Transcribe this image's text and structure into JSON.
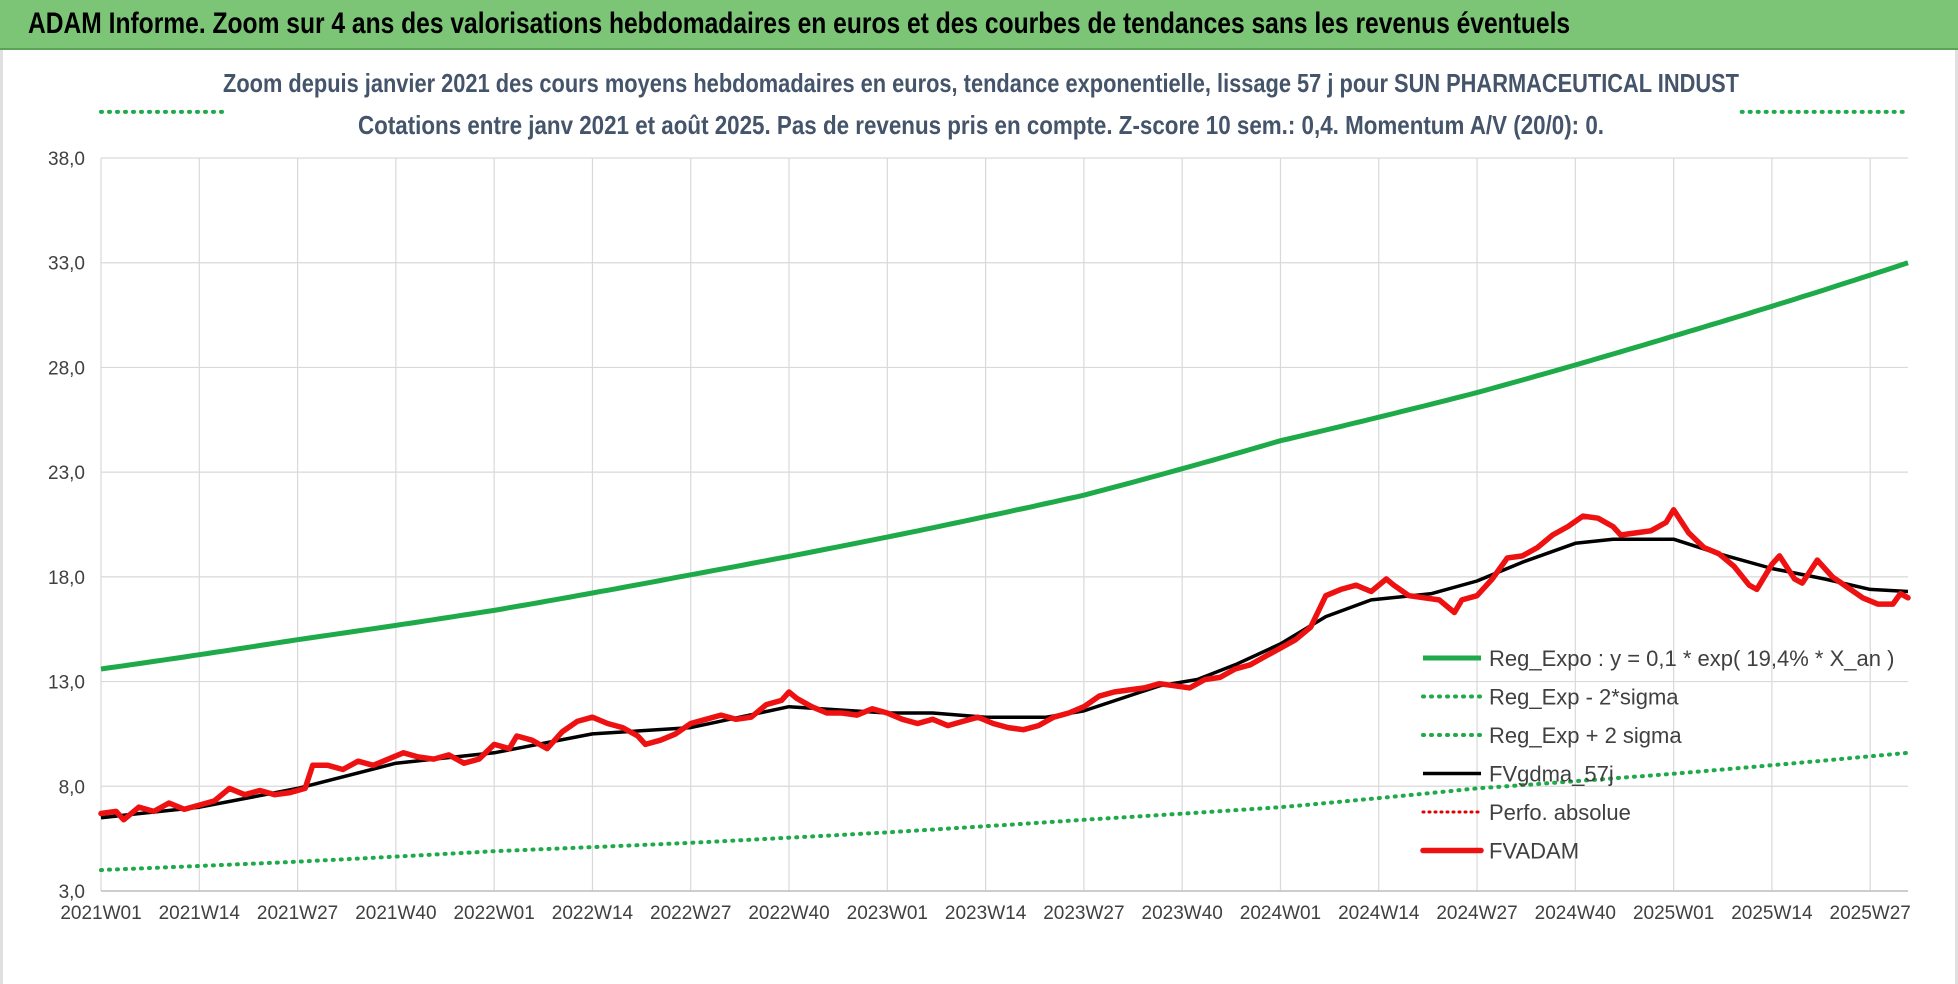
{
  "banner": {
    "title": "ADAM Informe. Zoom sur 4 ans des valorisations hebdomadaires en euros et des courbes de tendances sans les revenus éventuels"
  },
  "colors": {
    "banner_bg": "#7cc576",
    "reg_expo": "#1faa4a",
    "sigma": "#1faa4a",
    "fvgdma": "#000000",
    "perfo": "#e00000",
    "fvadam": "#ee1111",
    "grid": "#d9d9d9"
  },
  "chart_data": {
    "type": "line",
    "title_line1": "Zoom depuis janvier 2021 des cours moyens hebdomadaires en euros, tendance exponentielle, lissage 57 j pour SUN PHARMACEUTICAL INDUST",
    "title_line2": "Cotations entre janv 2021 et août 2025. Pas de revenus pris en compte. Z-score 10 sem.: 0,4. Momentum A/V (20/0): 0.",
    "ylim": [
      3.0,
      38.0
    ],
    "yticks": [
      "3,0",
      "8,0",
      "13,0",
      "18,0",
      "23,0",
      "28,0",
      "33,0",
      "38,0"
    ],
    "x_count": 240,
    "xticks": [
      {
        "i": 0,
        "label": "2021W01"
      },
      {
        "i": 13,
        "label": "2021W14"
      },
      {
        "i": 26,
        "label": "2021W27"
      },
      {
        "i": 39,
        "label": "2021W40"
      },
      {
        "i": 52,
        "label": "2022W01"
      },
      {
        "i": 65,
        "label": "2022W14"
      },
      {
        "i": 78,
        "label": "2022W27"
      },
      {
        "i": 91,
        "label": "2022W40"
      },
      {
        "i": 104,
        "label": "2023W01"
      },
      {
        "i": 117,
        "label": "2023W14"
      },
      {
        "i": 130,
        "label": "2023W27"
      },
      {
        "i": 143,
        "label": "2023W40"
      },
      {
        "i": 156,
        "label": "2024W01"
      },
      {
        "i": 169,
        "label": "2024W14"
      },
      {
        "i": 182,
        "label": "2024W27"
      },
      {
        "i": 195,
        "label": "2024W40"
      },
      {
        "i": 208,
        "label": "2025W01"
      },
      {
        "i": 221,
        "label": "2025W14"
      },
      {
        "i": 234,
        "label": "2025W27"
      }
    ],
    "grid": true,
    "legend_position": "right",
    "series": [
      {
        "key": "reg_expo",
        "name": "Reg_Expo : y = 0,1 * exp( 19,4% *  X_an )",
        "style": "solid-thick",
        "points": [
          [
            0,
            13.6
          ],
          [
            26,
            15.0
          ],
          [
            52,
            16.4
          ],
          [
            78,
            18.1
          ],
          [
            104,
            19.9
          ],
          [
            130,
            21.9
          ],
          [
            156,
            24.5
          ],
          [
            182,
            26.8
          ],
          [
            208,
            29.5
          ],
          [
            239,
            33.0
          ]
        ]
      },
      {
        "key": "minus2",
        "name": "Reg_Exp - 2*sigma",
        "style": "dotted",
        "points": [
          [
            0,
            4.0
          ],
          [
            26,
            4.4
          ],
          [
            52,
            4.9
          ],
          [
            78,
            5.3
          ],
          [
            104,
            5.8
          ],
          [
            130,
            6.4
          ],
          [
            156,
            7.0
          ],
          [
            182,
            7.9
          ],
          [
            208,
            8.6
          ],
          [
            239,
            9.6
          ]
        ]
      },
      {
        "key": "plus2",
        "name": "Reg_Exp + 2 sigma",
        "style": "dotted",
        "points": [
          [
            0,
            40.2
          ],
          [
            16,
            40.2
          ]
        ],
        "points2": [
          [
            217,
            40.2
          ],
          [
            239,
            40.2
          ]
        ]
      },
      {
        "key": "fvgdma",
        "name": "FVgdma_57j",
        "style": "solid",
        "points": [
          [
            0,
            6.5
          ],
          [
            13,
            7.0
          ],
          [
            26,
            7.9
          ],
          [
            39,
            9.1
          ],
          [
            52,
            9.6
          ],
          [
            65,
            10.5
          ],
          [
            78,
            10.8
          ],
          [
            91,
            11.8
          ],
          [
            104,
            11.5
          ],
          [
            110,
            11.5
          ],
          [
            117,
            11.3
          ],
          [
            125,
            11.3
          ],
          [
            130,
            11.6
          ],
          [
            140,
            12.8
          ],
          [
            145,
            13.1
          ],
          [
            150,
            13.8
          ],
          [
            156,
            14.8
          ],
          [
            162,
            16.1
          ],
          [
            168,
            16.9
          ],
          [
            176,
            17.2
          ],
          [
            182,
            17.8
          ],
          [
            188,
            18.7
          ],
          [
            195,
            19.6
          ],
          [
            200,
            19.8
          ],
          [
            208,
            19.8
          ],
          [
            214,
            19.1
          ],
          [
            221,
            18.4
          ],
          [
            228,
            17.9
          ],
          [
            234,
            17.4
          ],
          [
            239,
            17.3
          ]
        ]
      },
      {
        "key": "perfo",
        "name": "Perfo. absolue",
        "style": "dotted-red",
        "points": []
      },
      {
        "key": "fvadam",
        "name": "FVADAM",
        "style": "solid-red",
        "points": [
          [
            0,
            6.7
          ],
          [
            2,
            6.8
          ],
          [
            3,
            6.4
          ],
          [
            5,
            7.0
          ],
          [
            7,
            6.8
          ],
          [
            9,
            7.2
          ],
          [
            11,
            6.9
          ],
          [
            13,
            7.1
          ],
          [
            15,
            7.3
          ],
          [
            17,
            7.9
          ],
          [
            19,
            7.6
          ],
          [
            21,
            7.8
          ],
          [
            23,
            7.6
          ],
          [
            25,
            7.7
          ],
          [
            27,
            7.9
          ],
          [
            28,
            9.0
          ],
          [
            30,
            9.0
          ],
          [
            32,
            8.8
          ],
          [
            34,
            9.2
          ],
          [
            36,
            9.0
          ],
          [
            38,
            9.3
          ],
          [
            40,
            9.6
          ],
          [
            42,
            9.4
          ],
          [
            44,
            9.3
          ],
          [
            46,
            9.5
          ],
          [
            48,
            9.1
          ],
          [
            50,
            9.3
          ],
          [
            52,
            10.0
          ],
          [
            54,
            9.8
          ],
          [
            55,
            10.4
          ],
          [
            57,
            10.2
          ],
          [
            59,
            9.8
          ],
          [
            61,
            10.6
          ],
          [
            63,
            11.1
          ],
          [
            65,
            11.3
          ],
          [
            67,
            11.0
          ],
          [
            69,
            10.8
          ],
          [
            71,
            10.4
          ],
          [
            72,
            10.0
          ],
          [
            74,
            10.2
          ],
          [
            76,
            10.5
          ],
          [
            78,
            11.0
          ],
          [
            80,
            11.2
          ],
          [
            82,
            11.4
          ],
          [
            84,
            11.2
          ],
          [
            86,
            11.3
          ],
          [
            88,
            11.9
          ],
          [
            90,
            12.1
          ],
          [
            91,
            12.5
          ],
          [
            92,
            12.2
          ],
          [
            94,
            11.8
          ],
          [
            96,
            11.5
          ],
          [
            98,
            11.5
          ],
          [
            100,
            11.4
          ],
          [
            102,
            11.7
          ],
          [
            104,
            11.5
          ],
          [
            106,
            11.2
          ],
          [
            108,
            11.0
          ],
          [
            110,
            11.2
          ],
          [
            112,
            10.9
          ],
          [
            114,
            11.1
          ],
          [
            116,
            11.3
          ],
          [
            118,
            11.0
          ],
          [
            120,
            10.8
          ],
          [
            122,
            10.7
          ],
          [
            124,
            10.9
          ],
          [
            126,
            11.3
          ],
          [
            128,
            11.5
          ],
          [
            130,
            11.8
          ],
          [
            132,
            12.3
          ],
          [
            134,
            12.5
          ],
          [
            136,
            12.6
          ],
          [
            138,
            12.7
          ],
          [
            140,
            12.9
          ],
          [
            142,
            12.8
          ],
          [
            144,
            12.7
          ],
          [
            146,
            13.1
          ],
          [
            148,
            13.2
          ],
          [
            150,
            13.6
          ],
          [
            152,
            13.8
          ],
          [
            154,
            14.2
          ],
          [
            156,
            14.6
          ],
          [
            158,
            15.0
          ],
          [
            160,
            15.6
          ],
          [
            162,
            17.1
          ],
          [
            164,
            17.4
          ],
          [
            166,
            17.6
          ],
          [
            168,
            17.3
          ],
          [
            170,
            17.9
          ],
          [
            171,
            17.6
          ],
          [
            173,
            17.1
          ],
          [
            175,
            17.0
          ],
          [
            177,
            16.9
          ],
          [
            179,
            16.3
          ],
          [
            180,
            16.9
          ],
          [
            182,
            17.1
          ],
          [
            184,
            17.9
          ],
          [
            186,
            18.9
          ],
          [
            188,
            19.0
          ],
          [
            190,
            19.4
          ],
          [
            192,
            20.0
          ],
          [
            194,
            20.4
          ],
          [
            196,
            20.9
          ],
          [
            198,
            20.8
          ],
          [
            200,
            20.4
          ],
          [
            201,
            20.0
          ],
          [
            203,
            20.1
          ],
          [
            205,
            20.2
          ],
          [
            207,
            20.6
          ],
          [
            208,
            21.2
          ],
          [
            210,
            20.1
          ],
          [
            212,
            19.4
          ],
          [
            214,
            19.1
          ],
          [
            216,
            18.5
          ],
          [
            218,
            17.6
          ],
          [
            219,
            17.4
          ],
          [
            221,
            18.6
          ],
          [
            222,
            19.0
          ],
          [
            224,
            17.9
          ],
          [
            225,
            17.7
          ],
          [
            227,
            18.8
          ],
          [
            229,
            18.0
          ],
          [
            231,
            17.5
          ],
          [
            233,
            17.0
          ],
          [
            235,
            16.7
          ],
          [
            237,
            16.7
          ],
          [
            238,
            17.2
          ],
          [
            239,
            17.0
          ]
        ]
      }
    ]
  }
}
